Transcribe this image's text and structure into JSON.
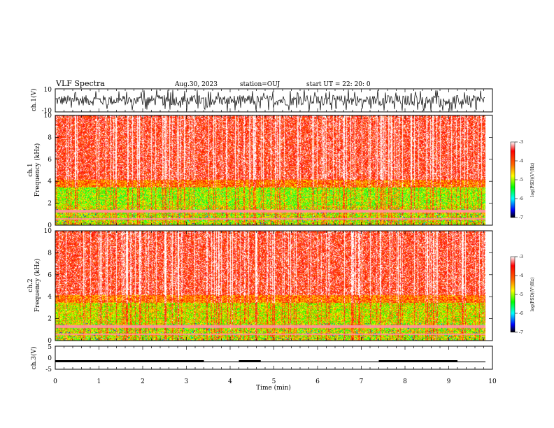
{
  "header": {
    "title": "VLF Spectra",
    "date": "Aug.30, 2023",
    "station": "station=OUJ",
    "start_ut": "start  UT =   22: 20: 0"
  },
  "chart_data": [
    {
      "type": "line",
      "name": "ch1-waveform",
      "ylabel": "ch.1(V)",
      "ylim": [
        -10,
        10
      ],
      "yticks": [
        "10",
        "-10"
      ],
      "xlim": [
        0,
        10
      ],
      "description_values": "dense noise-like waveform, amplitude mostly within -6..+6 V, spiky to +/-9 V"
    },
    {
      "type": "heatmap",
      "name": "ch1-spectrogram",
      "ylabel": "ch.1\nFrequency (kHz)",
      "ylabel_top": "ch.1",
      "ylabel_bottom": "Frequency (kHz)",
      "ylim": [
        0,
        10
      ],
      "yticks": [
        "0",
        "2",
        "4",
        "6",
        "8",
        "10"
      ],
      "xlim": [
        0,
        10
      ],
      "colorbar": {
        "label": "log(PSD)(V²/Hz)",
        "range": [
          -7,
          -3
        ],
        "ticks": [
          "-3",
          "-4",
          "-5",
          "-6",
          "-7"
        ]
      }
    },
    {
      "type": "heatmap",
      "name": "ch2-spectrogram",
      "ylabel_top": "ch.2",
      "ylabel_bottom": "Frequency (kHz)",
      "ylim": [
        0,
        10
      ],
      "yticks": [
        "0",
        "2",
        "4",
        "6",
        "8",
        "10"
      ],
      "xlim": [
        0,
        10
      ],
      "colorbar": {
        "label": "log(PSD)(V²/Hz)",
        "range": [
          -7,
          -3
        ],
        "ticks": [
          "-3",
          "-4",
          "-5",
          "-6",
          "-7"
        ]
      }
    },
    {
      "type": "line",
      "name": "ch3-signal",
      "ylabel": "ch.3(V)",
      "ylim": [
        -5,
        5
      ],
      "yticks": [
        "5",
        "0",
        "-5"
      ],
      "xlim": [
        0,
        10
      ],
      "xlabel": "Time (min)",
      "xticks": [
        "0",
        "1",
        "2",
        "3",
        "4",
        "5",
        "6",
        "7",
        "8",
        "9",
        "10"
      ],
      "segments_high": [
        [
          0,
          3.4
        ],
        [
          4.2,
          4.7
        ],
        [
          7.4,
          9.2
        ]
      ],
      "level_high": -1.5,
      "level_low": -1.8
    }
  ]
}
